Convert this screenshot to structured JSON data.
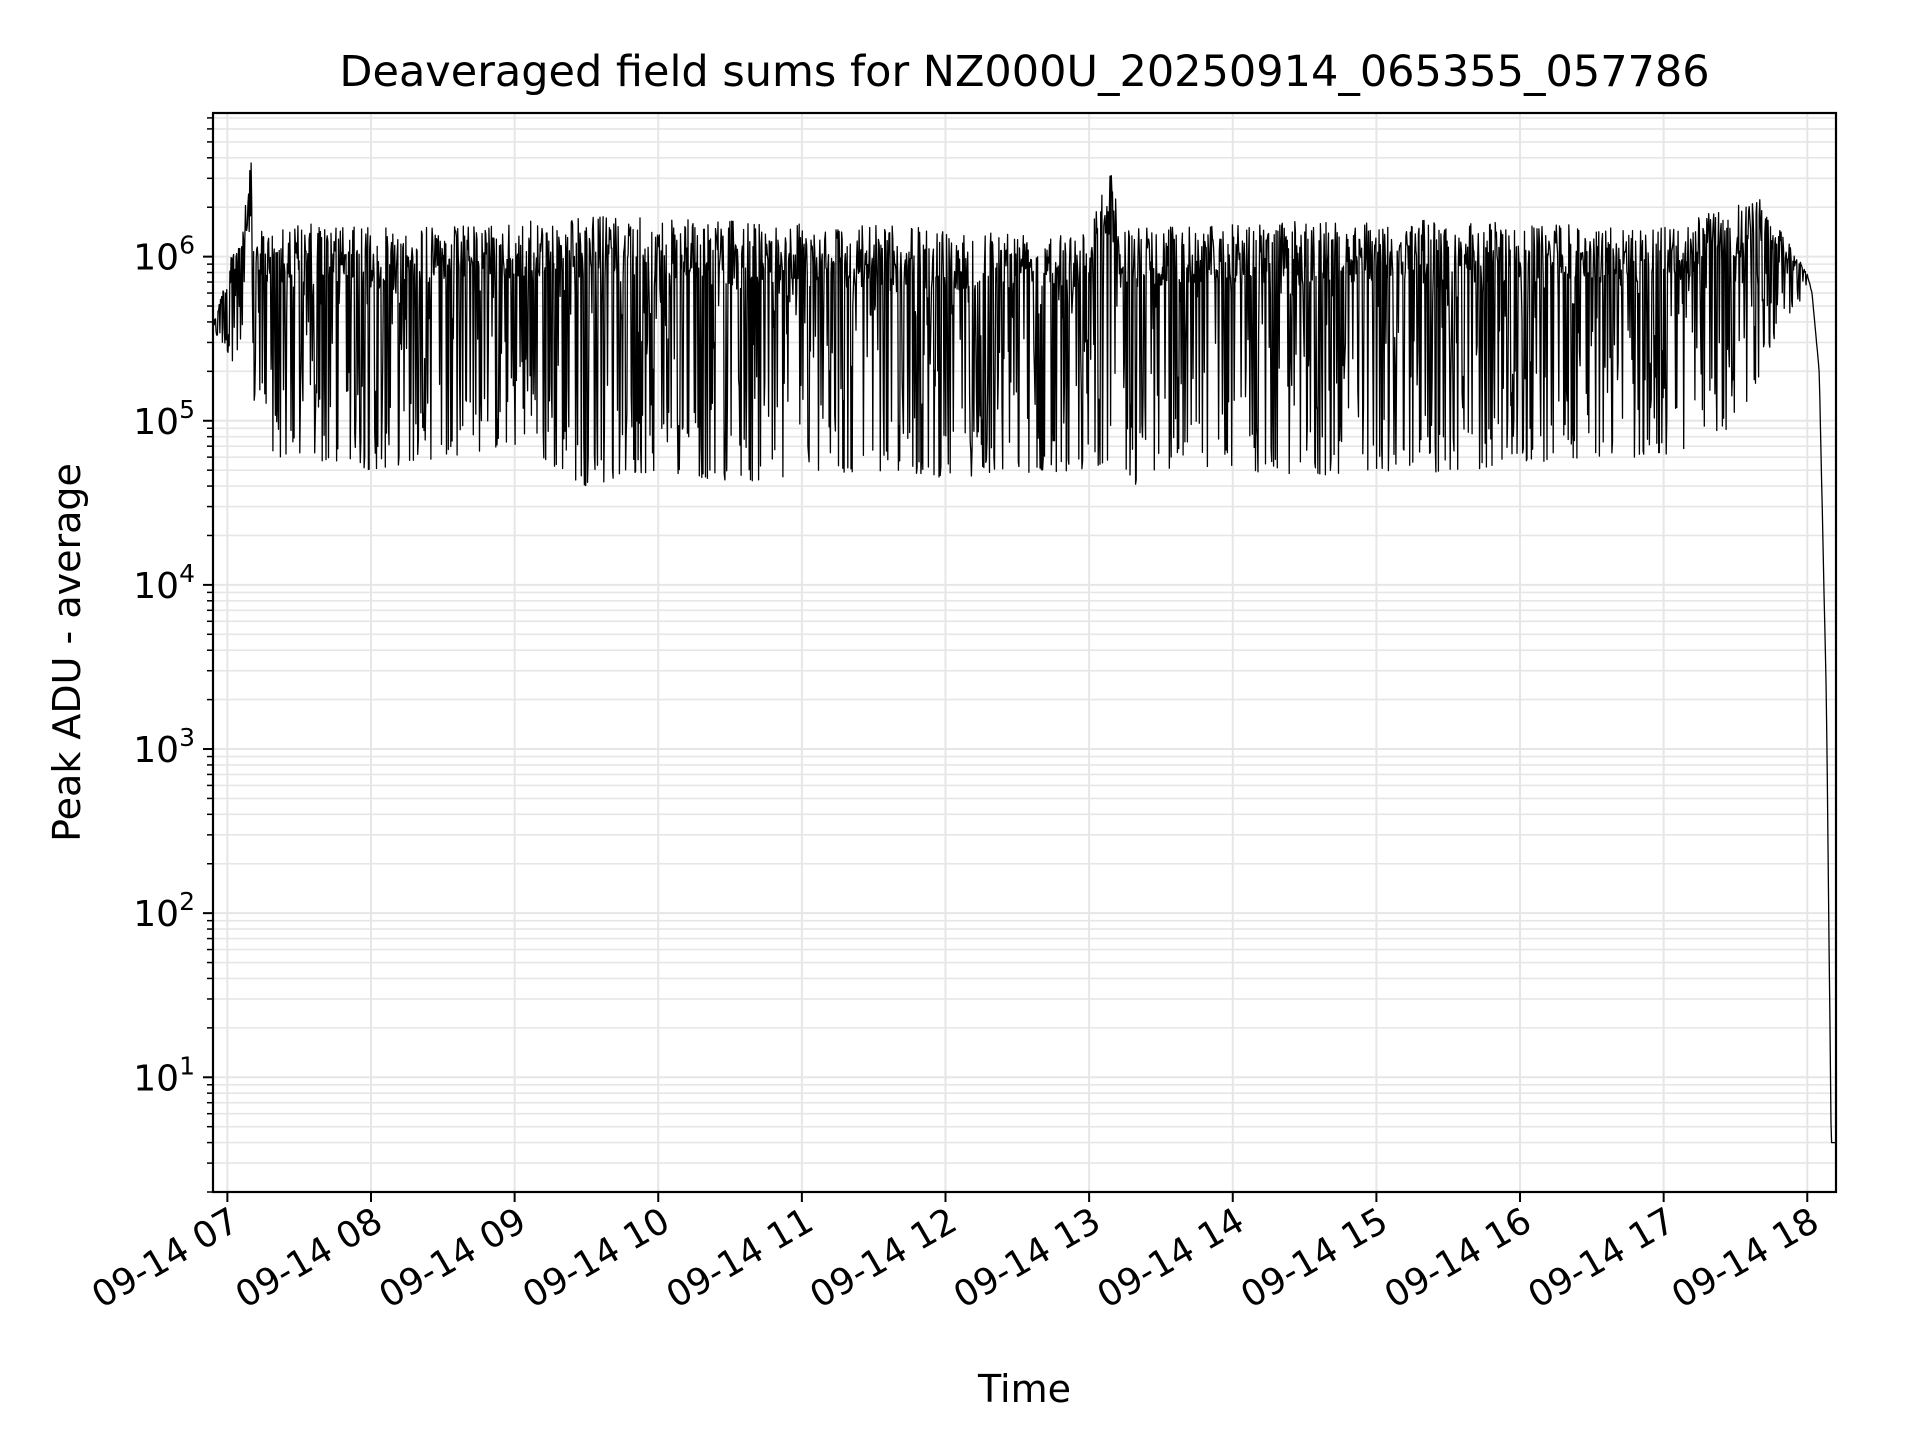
{
  "chart_data": {
    "type": "line",
    "title": "Deaveraged field sums for NZ000U_20250914_065355_057786",
    "xlabel": "Time",
    "ylabel": "Peak ADU - average",
    "y_scale": "log",
    "ylim": [
      2,
      7500000
    ],
    "xlim": [
      "2025-09-14 06:54",
      "2025-09-14 18:12"
    ],
    "grid": true,
    "colors": {
      "line": "#000000",
      "grid": "#e6e6e6",
      "axes": "#000000"
    },
    "x_ticks": [
      "09-14 07",
      "09-14 08",
      "09-14 09",
      "09-14 10",
      "09-14 11",
      "09-14 12",
      "09-14 13",
      "09-14 14",
      "09-14 15",
      "09-14 16",
      "09-14 17",
      "09-14 18"
    ],
    "y_ticks": [
      {
        "base": "10",
        "exp": "1"
      },
      {
        "base": "10",
        "exp": "2"
      },
      {
        "base": "10",
        "exp": "3"
      },
      {
        "base": "10",
        "exp": "4"
      },
      {
        "base": "10",
        "exp": "5"
      },
      {
        "base": "10",
        "exp": "6"
      }
    ],
    "series": [
      {
        "envelope_upper": {
          "x": [
            "06:54",
            "07:05",
            "07:10",
            "07:11",
            "07:30",
            "08:00",
            "09:00",
            "09:30",
            "10:00",
            "11:00",
            "12:00",
            "13:00",
            "13:10",
            "13:11",
            "13:13",
            "13:20",
            "14:00",
            "15:00",
            "16:00",
            "17:00",
            "17:40",
            "18:00",
            "18:02",
            "18:05",
            "18:08",
            "18:10",
            "18:12"
          ],
          "y": [
            400000,
            1500000,
            3800000,
            1400000,
            1600000,
            1500000,
            1600000,
            1800000,
            1700000,
            1600000,
            1500000,
            1500000,
            3900000,
            2400000,
            1500000,
            1500000,
            1600000,
            1700000,
            1600000,
            1500000,
            2300000,
            800000,
            600000,
            200000,
            2000,
            4,
            4
          ]
        },
        "envelope_lower": {
          "x": [
            "06:54",
            "07:05",
            "07:20",
            "07:40",
            "08:00",
            "08:30",
            "09:00",
            "09:30",
            "10:00",
            "10:30",
            "11:00",
            "11:30",
            "12:00",
            "12:30",
            "13:00",
            "13:10",
            "13:20",
            "13:40",
            "14:00",
            "14:30",
            "15:00",
            "15:30",
            "16:00",
            "16:30",
            "17:00",
            "17:30",
            "17:50",
            "18:00",
            "18:02",
            "18:05",
            "18:08",
            "18:10",
            "18:12"
          ],
          "y": [
            350000,
            200000,
            60000,
            55000,
            50000,
            60000,
            70000,
            40000,
            50000,
            42000,
            45000,
            50000,
            45000,
            48000,
            50000,
            60000,
            40000,
            55000,
            50000,
            45000,
            50000,
            48000,
            55000,
            60000,
            60000,
            90000,
            400000,
            600000,
            550000,
            180000,
            1500,
            4,
            4
          ]
        }
      }
    ]
  }
}
